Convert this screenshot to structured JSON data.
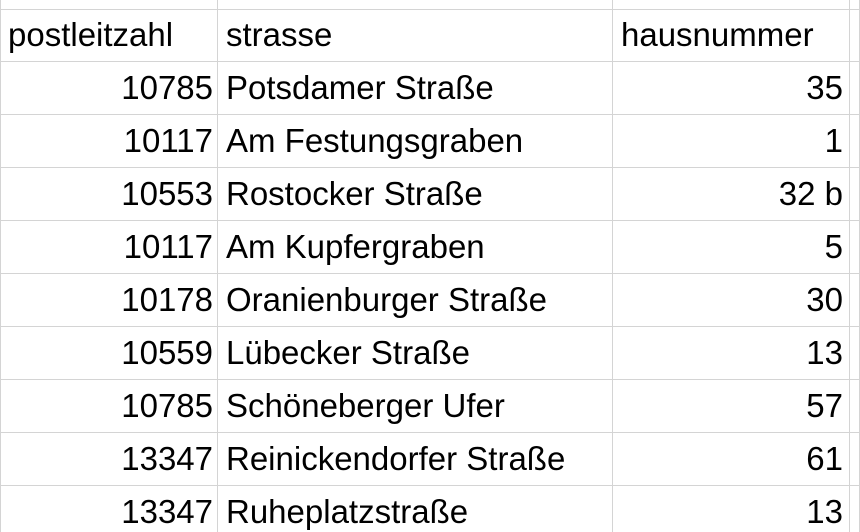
{
  "spreadsheet": {
    "columns": [
      "postleitzahl",
      "strasse",
      "hausnummer"
    ],
    "rows": [
      {
        "postleitzahl": "10785",
        "strasse": "Potsdamer Straße",
        "hausnummer": "35"
      },
      {
        "postleitzahl": "10117",
        "strasse": "Am Festungsgraben",
        "hausnummer": "1"
      },
      {
        "postleitzahl": "10553",
        "strasse": "Rostocker Straße",
        "hausnummer": "32 b"
      },
      {
        "postleitzahl": "10117",
        "strasse": "Am Kupfergraben",
        "hausnummer": "5"
      },
      {
        "postleitzahl": "10178",
        "strasse": "Oranienburger Straße",
        "hausnummer": "30"
      },
      {
        "postleitzahl": "10559",
        "strasse": "Lübecker Straße",
        "hausnummer": "13"
      },
      {
        "postleitzahl": "10785",
        "strasse": "Schöneberger Ufer",
        "hausnummer": "57"
      },
      {
        "postleitzahl": "13347",
        "strasse": "Reinickendorfer Straße",
        "hausnummer": "61"
      },
      {
        "postleitzahl": "13347",
        "strasse": "Ruheplatzstraße",
        "hausnummer": "13"
      }
    ]
  },
  "colors": {
    "gridline": "#d4d4d4",
    "text": "#000000",
    "background": "#ffffff"
  }
}
